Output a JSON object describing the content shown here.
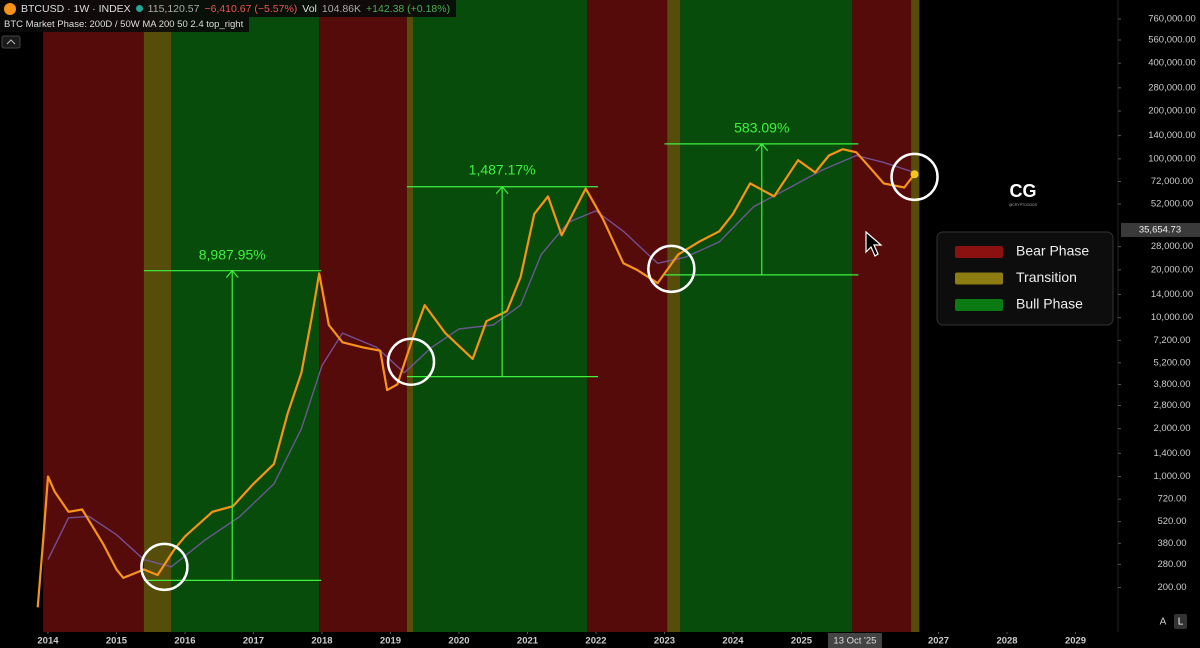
{
  "header": {
    "symbol": "BTCUSD · 1W · INDEX",
    "price": "115,120.57",
    "change": "−6,410.67 (−5.57%)",
    "vol_label": "Vol",
    "vol": "104.86K",
    "vol_change": "+142.38 (+0.18%)",
    "indicator": "BTC Market Phase: 200D / 50W MA 200 50 2.4 top_right"
  },
  "logo": {
    "mark": "CG",
    "handle": "@CRYPTOGODS"
  },
  "scale_buttons": [
    "A",
    "L"
  ],
  "chart_data": {
    "type": "line",
    "log_scale": true,
    "xlim": [
      2013.3,
      2029.62
    ],
    "ylim": [
      105,
      1000000
    ],
    "xticks": [
      2014,
      2015,
      2016,
      2017,
      2018,
      2019,
      2020,
      2021,
      2022,
      2023,
      2024,
      2025,
      2027,
      2028,
      2029
    ],
    "crosshair_x": {
      "value": 2025.78,
      "label": "13 Oct '25"
    },
    "price_label": {
      "value": 35654.73,
      "label": "35,654.73"
    },
    "yticks": [
      {
        "value": 760000,
        "label": "760,000.00"
      },
      {
        "value": 560000,
        "label": "560,000.00"
      },
      {
        "value": 400000,
        "label": "400,000.00"
      },
      {
        "value": 280000,
        "label": "280,000.00"
      },
      {
        "value": 200000,
        "label": "200,000.00"
      },
      {
        "value": 140000,
        "label": "140,000.00"
      },
      {
        "value": 100000,
        "label": "100,000.00"
      },
      {
        "value": 72000,
        "label": "72,000.00"
      },
      {
        "value": 52000,
        "label": "52,000.00"
      },
      {
        "value": 28000,
        "label": "28,000.00"
      },
      {
        "value": 20000,
        "label": "20,000.00"
      },
      {
        "value": 14000,
        "label": "14,000.00"
      },
      {
        "value": 10000,
        "label": "10,000.00"
      },
      {
        "value": 7200,
        "label": "7,200.00"
      },
      {
        "value": 5200,
        "label": "5,200.00"
      },
      {
        "value": 3800,
        "label": "3,800.00"
      },
      {
        "value": 2800,
        "label": "2,800.00"
      },
      {
        "value": 2000,
        "label": "2,000.00"
      },
      {
        "value": 1400,
        "label": "1,400.00"
      },
      {
        "value": 1000,
        "label": "1,000.00"
      },
      {
        "value": 720,
        "label": "720.00"
      },
      {
        "value": 520,
        "label": "520.00"
      },
      {
        "value": 380,
        "label": "380.00"
      },
      {
        "value": 280,
        "label": "280.00"
      },
      {
        "value": 200,
        "label": "200.00"
      }
    ],
    "legend": {
      "position": "right",
      "items": [
        {
          "name": "Bear Phase",
          "color": "#8b1111"
        },
        {
          "name": "Transition",
          "color": "#8c7c12"
        },
        {
          "name": "Bull Phase",
          "color": "#0c7a12"
        }
      ]
    },
    "bands": [
      {
        "x0": 2013.93,
        "x1": 2015.4,
        "item": 0
      },
      {
        "x0": 2015.4,
        "x1": 2015.8,
        "item": 1
      },
      {
        "x0": 2015.8,
        "x1": 2017.96,
        "item": 2
      },
      {
        "x0": 2017.96,
        "x1": 2019.24,
        "item": 0
      },
      {
        "x0": 2019.24,
        "x1": 2019.33,
        "item": 1
      },
      {
        "x0": 2019.33,
        "x1": 2021.87,
        "item": 2
      },
      {
        "x0": 2021.87,
        "x1": 2023.04,
        "item": 0
      },
      {
        "x0": 2023.04,
        "x1": 2023.23,
        "item": 1
      },
      {
        "x0": 2023.23,
        "x1": 2025.74,
        "item": 2
      },
      {
        "x0": 2025.74,
        "x1": 2026.6,
        "item": 0
      },
      {
        "x0": 2026.6,
        "x1": 2026.72,
        "item": 1
      }
    ],
    "series": [
      {
        "color": "#7a5ca8",
        "x": [
          2014.0,
          2014.3,
          2014.6,
          2015.0,
          2015.4,
          2015.8,
          2016.3,
          2016.8,
          2017.3,
          2017.7,
          2018.0,
          2018.3,
          2018.8,
          2019.2,
          2019.6,
          2020.0,
          2020.5,
          2020.9,
          2021.2,
          2021.6,
          2022.0,
          2022.4,
          2022.9,
          2023.3,
          2023.8,
          2024.3,
          2024.8,
          2025.3,
          2025.8,
          2026.2,
          2026.65
        ],
        "values": [
          300,
          550,
          560,
          430,
          300,
          270,
          400,
          560,
          900,
          2000,
          5000,
          8000,
          6500,
          4500,
          6500,
          8500,
          9000,
          12000,
          25000,
          40000,
          47000,
          35000,
          22000,
          24000,
          30000,
          50000,
          65000,
          85000,
          105000,
          95000,
          82000
        ]
      },
      {
        "name": "BTCUSD",
        "color": "#f7931a",
        "x": [
          2013.85,
          2013.93,
          2014.0,
          2014.1,
          2014.3,
          2014.5,
          2014.8,
          2015.0,
          2015.1,
          2015.4,
          2015.6,
          2015.85,
          2016.0,
          2016.4,
          2016.7,
          2017.0,
          2017.3,
          2017.5,
          2017.7,
          2017.85,
          2017.96,
          2018.1,
          2018.3,
          2018.6,
          2018.85,
          2018.95,
          2019.1,
          2019.35,
          2019.5,
          2019.8,
          2020.2,
          2020.4,
          2020.7,
          2020.9,
          2021.1,
          2021.3,
          2021.5,
          2021.85,
          2022.1,
          2022.4,
          2022.6,
          2022.9,
          2023.2,
          2023.5,
          2023.8,
          2024.0,
          2024.25,
          2024.6,
          2024.95,
          2025.2,
          2025.4,
          2025.6,
          2025.8,
          2026.0,
          2026.2,
          2026.5,
          2026.65
        ],
        "values": [
          150,
          400,
          1000,
          800,
          600,
          620,
          380,
          260,
          230,
          260,
          240,
          350,
          420,
          600,
          650,
          900,
          1200,
          2500,
          4500,
          10000,
          19000,
          9000,
          7000,
          6500,
          6200,
          3500,
          3800,
          8000,
          12000,
          8000,
          5500,
          9500,
          11000,
          18000,
          45000,
          58000,
          33000,
          65000,
          42000,
          22000,
          20000,
          16500,
          25000,
          30000,
          35000,
          45000,
          70000,
          58000,
          98000,
          82000,
          105000,
          115000,
          110000,
          88000,
          70000,
          66000,
          80000
        ]
      }
    ],
    "measurements": [
      {
        "label": "8,987.95%",
        "x": 2016.69,
        "x0": 2015.4,
        "x1": 2017.99,
        "low": 222,
        "high": 19770,
        "label_y": 24500
      },
      {
        "label": "1,487.17%",
        "x": 2020.63,
        "x0": 2019.24,
        "x1": 2022.03,
        "low": 4255,
        "high": 66700,
        "label_y": 84000
      },
      {
        "label": "583.09%",
        "x": 2024.42,
        "x0": 2023.0,
        "x1": 2025.83,
        "low": 18600,
        "high": 124200,
        "label_y": 155000
      }
    ],
    "highlights": [
      {
        "x": 2015.7,
        "y": 270
      },
      {
        "x": 2019.3,
        "y": 5280
      },
      {
        "x": 2023.1,
        "y": 20300
      },
      {
        "x": 2026.65,
        "y": 77000
      }
    ],
    "marker": {
      "x": 2026.65,
      "y": 80000,
      "color": "#f5c518"
    }
  }
}
